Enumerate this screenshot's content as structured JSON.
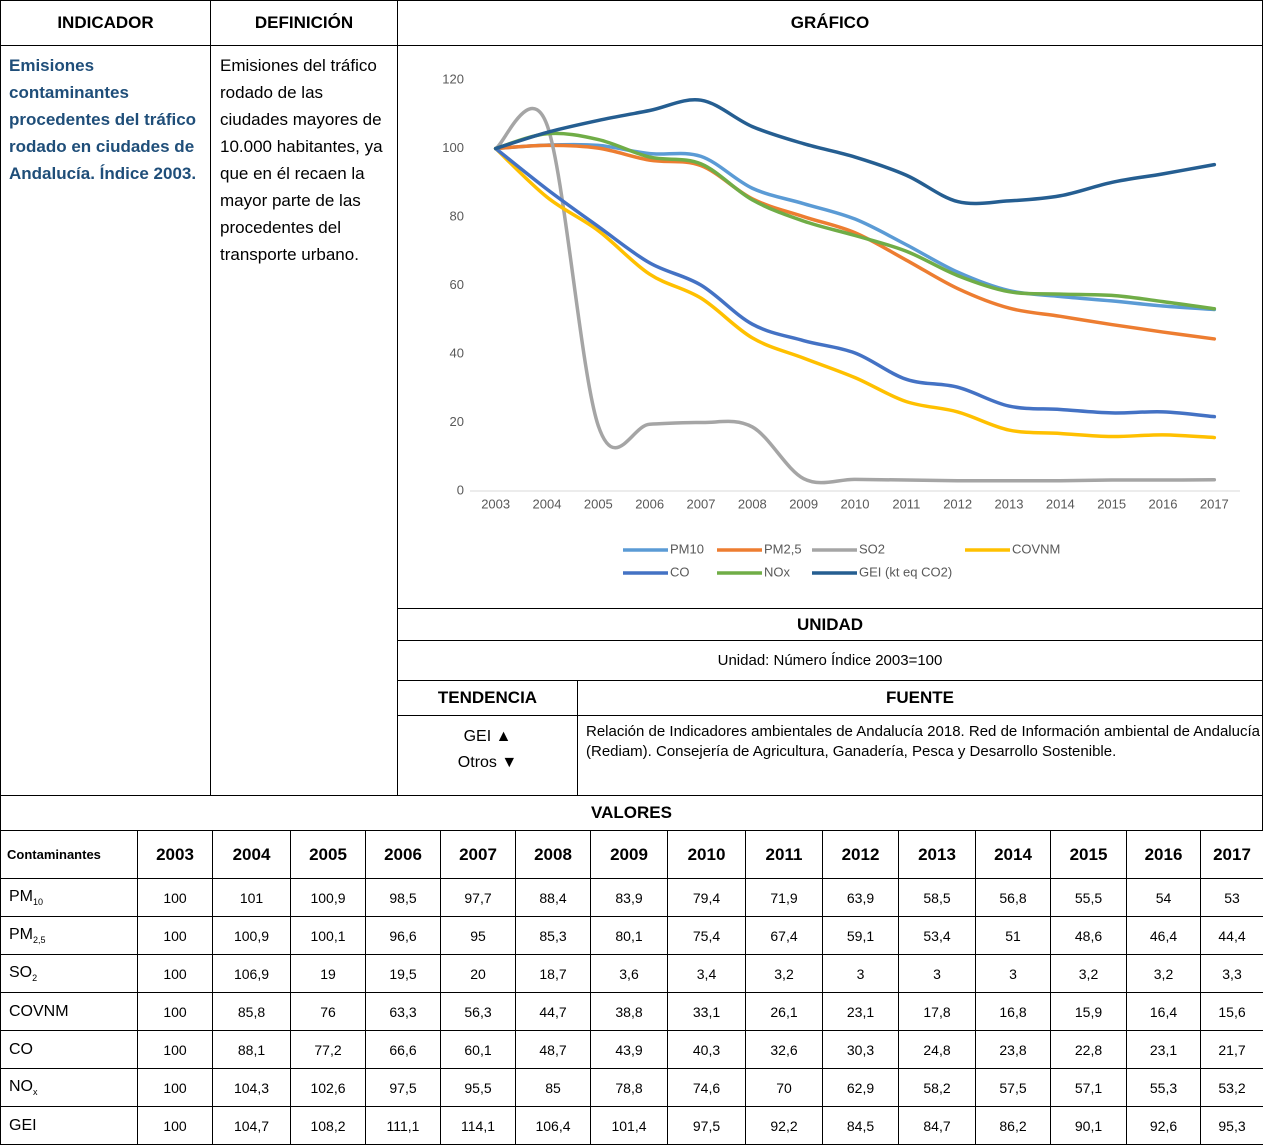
{
  "header": {
    "indicador": "INDICADOR",
    "definicion": "DEFINICIÓN",
    "grafico": "GRÁFICO"
  },
  "indicador": "Emisiones contaminantes procedentes del tráfico rodado en ciudades de Andalucía. Índice 2003.",
  "definicion": "Emisiones del tráfico rodado de las ciudades mayores de 10.000 habitantes, ya que en él recaen la mayor parte de las procedentes del transporte urbano.",
  "chart_data": {
    "type": "line",
    "categories": [
      "2003",
      "2004",
      "2005",
      "2006",
      "2007",
      "2008",
      "2009",
      "2010",
      "2011",
      "2012",
      "2013",
      "2014",
      "2015",
      "2016",
      "2017"
    ],
    "ylim": [
      0,
      120
    ],
    "yticks": [
      0,
      20,
      40,
      60,
      80,
      100,
      120
    ],
    "smooth": true,
    "series": [
      {
        "name": "PM10",
        "color": "#5b9bd5",
        "values": [
          100,
          101,
          100.9,
          98.5,
          97.7,
          88.4,
          83.9,
          79.4,
          71.9,
          63.9,
          58.5,
          56.8,
          55.5,
          54,
          53
        ]
      },
      {
        "name": "PM2,5",
        "color": "#ed7d31",
        "values": [
          100,
          100.9,
          100.1,
          96.6,
          95,
          85.3,
          80.1,
          75.4,
          67.4,
          59.1,
          53.4,
          51,
          48.6,
          46.4,
          44.4
        ]
      },
      {
        "name": "SO2",
        "color": "#a5a5a5",
        "values": [
          100,
          106.9,
          19,
          19.5,
          20,
          18.7,
          3.6,
          3.4,
          3.2,
          3,
          3,
          3,
          3.2,
          3.2,
          3.3
        ]
      },
      {
        "name": "COVNM",
        "color": "#ffc000",
        "values": [
          100,
          85.8,
          76,
          63.3,
          56.3,
          44.7,
          38.8,
          33.1,
          26.1,
          23.1,
          17.8,
          16.8,
          15.9,
          16.4,
          15.6
        ]
      },
      {
        "name": "CO",
        "color": "#4472c4",
        "values": [
          100,
          88.1,
          77.2,
          66.6,
          60.1,
          48.7,
          43.9,
          40.3,
          32.6,
          30.3,
          24.8,
          23.8,
          22.8,
          23.1,
          21.7
        ]
      },
      {
        "name": "NOx",
        "color": "#70ad47",
        "values": [
          100,
          104.3,
          102.6,
          97.5,
          95.5,
          85,
          78.8,
          74.6,
          70,
          62.9,
          58.2,
          57.5,
          57.1,
          55.3,
          53.2
        ]
      },
      {
        "name": "GEI (kt eq CO2)",
        "color": "#255e91",
        "values": [
          100,
          104.7,
          108.2,
          111.1,
          114.1,
          106.4,
          101.4,
          97.5,
          92.2,
          84.5,
          84.7,
          86.2,
          90.1,
          92.6,
          95.3
        ]
      }
    ]
  },
  "unidad": {
    "title": "UNIDAD",
    "text": "Unidad: Número Índice 2003=100"
  },
  "tendencia": {
    "title": "TENDENCIA",
    "lines": [
      "GEI ▲",
      "Otros ▼"
    ]
  },
  "fuente": {
    "title": "FUENTE",
    "text": "Relación de Indicadores ambientales de Andalucía 2018. Red de Información ambiental de Andalucía (Rediam). Consejería de Agricultura, Ganadería, Pesca y Desarrollo Sostenible."
  },
  "valores": {
    "title": "VALORES",
    "columns": [
      "Contaminantes",
      "2003",
      "2004",
      "2005",
      "2006",
      "2007",
      "2008",
      "2009",
      "2010",
      "2011",
      "2012",
      "2013",
      "2014",
      "2015",
      "2016",
      "2017"
    ],
    "rows": [
      {
        "label": {
          "base": "PM",
          "sub": "10"
        },
        "cells": [
          "100",
          "101",
          "100,9",
          "98,5",
          "97,7",
          "88,4",
          "83,9",
          "79,4",
          "71,9",
          "63,9",
          "58,5",
          "56,8",
          "55,5",
          "54",
          "53"
        ]
      },
      {
        "label": {
          "base": "PM",
          "sub": "2,5"
        },
        "cells": [
          "100",
          "100,9",
          "100,1",
          "96,6",
          "95",
          "85,3",
          "80,1",
          "75,4",
          "67,4",
          "59,1",
          "53,4",
          "51",
          "48,6",
          "46,4",
          "44,4"
        ]
      },
      {
        "label": {
          "base": "SO",
          "sub": "2"
        },
        "cells": [
          "100",
          "106,9",
          "19",
          "19,5",
          "20",
          "18,7",
          "3,6",
          "3,4",
          "3,2",
          "3",
          "3",
          "3",
          "3,2",
          "3,2",
          "3,3"
        ]
      },
      {
        "label": {
          "base": "COVNM"
        },
        "cells": [
          "100",
          "85,8",
          "76",
          "63,3",
          "56,3",
          "44,7",
          "38,8",
          "33,1",
          "26,1",
          "23,1",
          "17,8",
          "16,8",
          "15,9",
          "16,4",
          "15,6"
        ]
      },
      {
        "label": {
          "base": "CO"
        },
        "cells": [
          "100",
          "88,1",
          "77,2",
          "66,6",
          "60,1",
          "48,7",
          "43,9",
          "40,3",
          "32,6",
          "30,3",
          "24,8",
          "23,8",
          "22,8",
          "23,1",
          "21,7"
        ]
      },
      {
        "label": {
          "base": "NO",
          "sub": "x"
        },
        "cells": [
          "100",
          "104,3",
          "102,6",
          "97,5",
          "95,5",
          "85",
          "78,8",
          "74,6",
          "70",
          "62,9",
          "58,2",
          "57,5",
          "57,1",
          "55,3",
          "53,2"
        ]
      },
      {
        "label": {
          "base": "GEI"
        },
        "cells": [
          "100",
          "104,7",
          "108,2",
          "111,1",
          "114,1",
          "106,4",
          "101,4",
          "97,5",
          "92,2",
          "84,5",
          "84,7",
          "86,2",
          "90,1",
          "92,6",
          "95,3"
        ]
      }
    ]
  }
}
